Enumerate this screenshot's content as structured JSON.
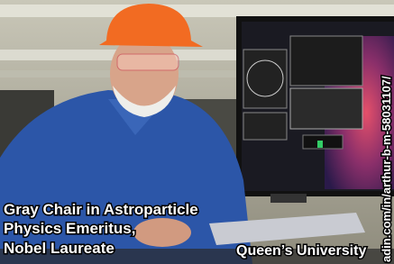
{
  "caption": {
    "lines": [
      "Gray Chair in Astroparticle",
      "Physics Emeritus,",
      "Nobel Laureate"
    ]
  },
  "institution": "Queen’s University",
  "watermark": "adin.com/in/arthur-b-m-58031107/"
}
